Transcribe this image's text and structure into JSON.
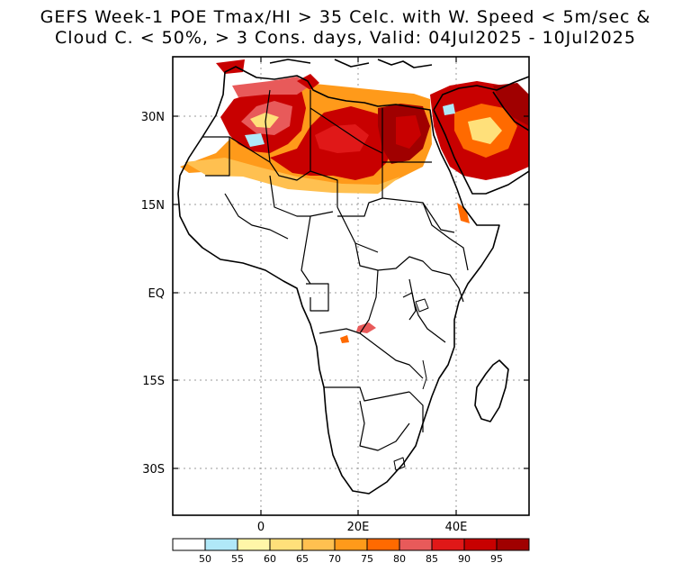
{
  "title": {
    "line1": "GEFS Week-1 POE Tmax/HI > 35 Celc. with W. Speed < 5m/sec &",
    "line2": "Cloud C. < 50%, > 3 Cons. days, Valid: 04Jul2025 - 10Jul2025"
  },
  "axes": {
    "lat_labels": [
      "30N",
      "15N",
      "EQ",
      "15S",
      "30S"
    ],
    "lon_labels": [
      "0",
      "20E",
      "40E"
    ]
  },
  "colorbar": {
    "colors": [
      "#ffffff",
      "#b0e8f8",
      "#fff6a8",
      "#ffe07a",
      "#ffc050",
      "#ff9a1a",
      "#ff6a00",
      "#e85a5a",
      "#e01818",
      "#c80000",
      "#a00000"
    ],
    "labels": [
      "50",
      "55",
      "60",
      "65",
      "70",
      "75",
      "80",
      "85",
      "90",
      "95"
    ]
  }
}
